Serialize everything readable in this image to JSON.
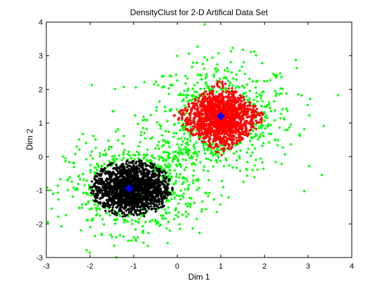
{
  "chart_data": {
    "type": "scatter",
    "title": "DensityClust for 2-D Artifical Data Set",
    "xlabel": "Dim 1",
    "ylabel": "Dim 2",
    "xlim": [
      -3,
      4
    ],
    "ylim": [
      -3,
      4
    ],
    "xticks": [
      "-3",
      "-2",
      "-1",
      "0",
      "1",
      "2",
      "3",
      "4"
    ],
    "yticks": [
      "-3",
      "-2",
      "-1",
      "0",
      "1",
      "2",
      "3",
      "4"
    ],
    "grid": false,
    "legend": "none",
    "colors": {
      "cluster_a": "#ff0000",
      "cluster_b": "#000000",
      "halo": "#00ff00",
      "centers": "#0000ff"
    },
    "clusters": [
      {
        "color": "#ff0000",
        "center": [
          1.0,
          1.15
        ],
        "spread": [
          0.45,
          0.45
        ],
        "shape": "diamond-core",
        "count": 1500
      },
      {
        "color": "#000000",
        "center": [
          -1.05,
          -0.95
        ],
        "spread": [
          0.45,
          0.4
        ],
        "shape": "round-core",
        "count": 1700
      },
      {
        "color": "#00ff00",
        "center": [
          1.0,
          1.15
        ],
        "spread": [
          0.85,
          0.85
        ],
        "shape": "halo",
        "count": 500
      },
      {
        "color": "#00ff00",
        "center": [
          -1.05,
          -0.95
        ],
        "spread": [
          0.75,
          0.65
        ],
        "shape": "halo",
        "count": 420
      },
      {
        "color": "#00ff00",
        "center": [
          0.0,
          0.1
        ],
        "spread": [
          0.6,
          0.5
        ],
        "shape": "bridge",
        "count": 110
      }
    ],
    "centers": [
      {
        "x": 1.0,
        "y": 1.2,
        "color": "#0000ff",
        "marker": "diamond"
      },
      {
        "x": -1.1,
        "y": -0.95,
        "color": "#0000ff",
        "marker": "diamond"
      }
    ]
  }
}
